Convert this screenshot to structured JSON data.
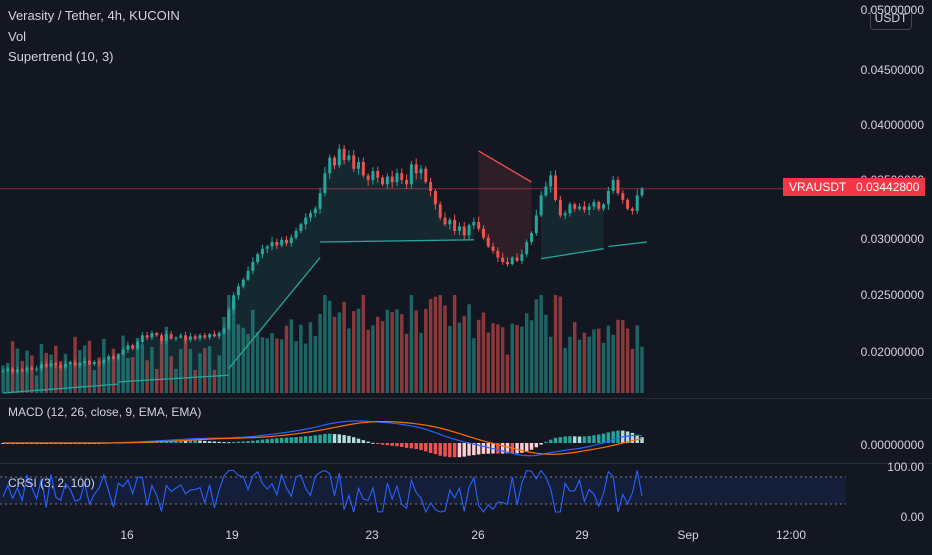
{
  "header": {
    "symbol_title": "Verasity / Tether, 4h, KUCOIN",
    "vol_label": "Vol",
    "supertrend_label": "Supertrend (10, 3)",
    "currency": "USDT"
  },
  "price_axis": {
    "labels": [
      "0.05000000",
      "0.04500000",
      "0.04000000",
      "0.03500000",
      "0.03000000",
      "0.02500000",
      "0.02000000"
    ],
    "last_symbol": "VRAUSDT",
    "last_price": "0.03442800"
  },
  "macd": {
    "label": "MACD (12, 26, close, 9, EMA, EMA)",
    "axis_label": "0.00000000"
  },
  "crsi": {
    "label": "CRSI (3, 2, 100)",
    "axis_top": "100.00",
    "axis_bottom": "0.00"
  },
  "time_axis": {
    "labels": [
      "16",
      "19",
      "23",
      "26",
      "29",
      "Sep",
      "12:00"
    ]
  },
  "colors": {
    "background": "#131722",
    "up": "#26a69a",
    "down": "#ef5350",
    "macd_line": "#2962ff",
    "signal_line": "#ff6d00",
    "crsi_line": "#2962ff",
    "last_price": "#f23645"
  },
  "chart_data": {
    "type": "candlestick",
    "symbol": "VRAUSDT",
    "interval": "4h",
    "ylim": [
      0.016,
      0.0505
    ],
    "closes": [
      0.018,
      0.0182,
      0.0179,
      0.0181,
      0.018,
      0.0183,
      0.0181,
      0.0182,
      0.0186,
      0.0184,
      0.0187,
      0.0185,
      0.0183,
      0.0186,
      0.0188,
      0.0185,
      0.0187,
      0.0189,
      0.0186,
      0.0188,
      0.0187,
      0.019,
      0.0193,
      0.0191,
      0.0195,
      0.0199,
      0.0203,
      0.02,
      0.0206,
      0.0212,
      0.021,
      0.0214,
      0.0212,
      0.0207,
      0.0213,
      0.0209,
      0.021,
      0.0212,
      0.0208,
      0.0211,
      0.0209,
      0.0212,
      0.021,
      0.0213,
      0.0211,
      0.0214,
      0.0218,
      0.0235,
      0.0248,
      0.0256,
      0.0262,
      0.027,
      0.0278,
      0.0285,
      0.029,
      0.0292,
      0.0296,
      0.0293,
      0.0298,
      0.0295,
      0.03,
      0.0306,
      0.0312,
      0.0318,
      0.0322,
      0.0326,
      0.034,
      0.0358,
      0.0372,
      0.0365,
      0.038,
      0.037,
      0.0374,
      0.0362,
      0.0368,
      0.0356,
      0.0352,
      0.036,
      0.0354,
      0.0348,
      0.0355,
      0.035,
      0.0358,
      0.0352,
      0.0348,
      0.0366,
      0.0358,
      0.0362,
      0.035,
      0.0342,
      0.033,
      0.0318,
      0.0312,
      0.0316,
      0.0306,
      0.031,
      0.0302,
      0.0311,
      0.0314,
      0.0308,
      0.03,
      0.0292,
      0.0288,
      0.0282,
      0.0278,
      0.0276,
      0.0282,
      0.0279,
      0.0285,
      0.0296,
      0.0304,
      0.032,
      0.0338,
      0.0346,
      0.0356,
      0.0334,
      0.032,
      0.0322,
      0.033,
      0.0326,
      0.0328,
      0.0325,
      0.0328,
      0.0332,
      0.0326,
      0.033,
      0.0342,
      0.0352,
      0.034,
      0.0334,
      0.0326,
      0.0324,
      0.0338,
      0.0344
    ],
    "supertrend_segments": [
      {
        "direction": "up",
        "from": 0,
        "to": 24,
        "values": [
          0.016,
          0.0168
        ]
      },
      {
        "direction": "up",
        "from": 24,
        "to": 47,
        "values": [
          0.017,
          0.0176
        ]
      },
      {
        "direction": "up",
        "from": 47,
        "to": 66,
        "values": [
          0.0182,
          0.0282
        ]
      },
      {
        "direction": "up",
        "from": 66,
        "to": 98,
        "values": [
          0.0296,
          0.0298
        ]
      },
      {
        "direction": "down",
        "from": 99,
        "to": 110,
        "values": [
          0.0378,
          0.035
        ]
      },
      {
        "direction": "up",
        "from": 112,
        "to": 125,
        "values": [
          0.0281,
          0.029
        ]
      },
      {
        "direction": "up",
        "from": 126,
        "to": 134,
        "values": [
          0.0292,
          0.0296
        ]
      }
    ],
    "crsi_range": [
      0,
      100
    ]
  }
}
